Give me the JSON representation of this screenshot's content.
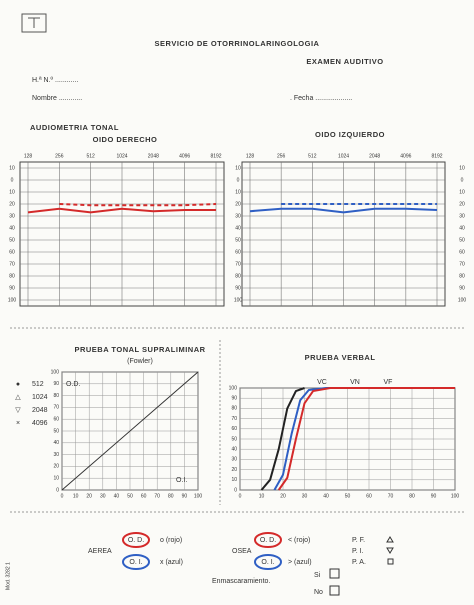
{
  "header": {
    "service": "SERVICIO DE OTORRINOLARINGOLOGIA",
    "exam": "EXAMEN AUDITIVO",
    "record": "H.ª N.º ............",
    "name": "Nombre ............",
    "date": ". Fecha ...................",
    "side_code": "Mod. 3282 1"
  },
  "audiometry": {
    "title": "AUDIOMETRIA TONAL",
    "frequencies": [
      128,
      256,
      512,
      1024,
      2048,
      4096,
      8192
    ],
    "ylim": [
      -10,
      100
    ],
    "yticks": [
      {
        "value": -10,
        "label": "10"
      },
      0,
      10,
      20,
      30,
      40,
      50,
      60,
      70,
      80,
      90,
      100
    ],
    "right": {
      "title": "OIDO DERECHO",
      "series": [
        {
          "color": "#d42a2a",
          "dashed": false,
          "values": [
            27,
            24,
            27,
            24,
            26,
            25,
            25
          ]
        },
        {
          "color": "#d42a2a",
          "dashed": true,
          "values": [
            null,
            20,
            21,
            21,
            21,
            21,
            20
          ]
        }
      ]
    },
    "left": {
      "title": "OIDO IZQUIERDO",
      "series": [
        {
          "color": "#2f5fc4",
          "dashed": false,
          "values": [
            26,
            24,
            24,
            27,
            24,
            24,
            25
          ]
        },
        {
          "color": "#2f5fc4",
          "dashed": true,
          "values": [
            null,
            20,
            20,
            20,
            20,
            20,
            20
          ]
        }
      ]
    }
  },
  "fowler": {
    "title": "PRUEBA TONAL SUPRALIMINAR",
    "subtitle": "(Fowler)",
    "legend": [
      {
        "symbol": "●",
        "label": "512"
      },
      {
        "symbol": "△",
        "label": "1024"
      },
      {
        "symbol": "▽",
        "label": "2048"
      },
      {
        "symbol": "×",
        "label": "4096"
      }
    ],
    "xlim": [
      0,
      100
    ],
    "ylim": [
      0,
      100
    ],
    "xticks": [
      0,
      10,
      20,
      30,
      40,
      50,
      60,
      70,
      80,
      90,
      100
    ],
    "yticks": [
      0,
      10,
      20,
      30,
      40,
      50,
      60,
      70,
      80,
      90,
      100
    ],
    "right_label": "O.D.",
    "left_label": "O.I."
  },
  "speech": {
    "title": "PRUEBA VERBAL",
    "markers": [
      "VC",
      "VN",
      "VF"
    ],
    "xlim": [
      0,
      100
    ],
    "ylim": [
      0,
      100
    ],
    "xticks": [
      0,
      10,
      20,
      30,
      40,
      50,
      60,
      70,
      80,
      90,
      100
    ],
    "yticks": [
      0,
      10,
      20,
      30,
      40,
      50,
      60,
      70,
      80,
      90,
      100
    ],
    "series": [
      {
        "color": "#222222",
        "x": [
          10,
          14,
          18,
          22,
          26,
          30
        ],
        "values": [
          0,
          10,
          40,
          80,
          97,
          100
        ]
      },
      {
        "color": "#2f5fc4",
        "x": [
          16,
          20,
          24,
          28,
          32,
          40,
          100
        ],
        "values": [
          0,
          15,
          55,
          88,
          98,
          100,
          100
        ]
      },
      {
        "color": "#d42a2a",
        "x": [
          18,
          22,
          26,
          30,
          34,
          42,
          100
        ],
        "values": [
          0,
          12,
          50,
          85,
          97,
          100,
          100
        ]
      }
    ]
  },
  "key": {
    "air": "AEREA",
    "air_od": "O. D.",
    "air_od_sym": "o (rojo)",
    "air_oi": "O. I.",
    "air_oi_sym": "x (azul)",
    "bone": "OSEA",
    "bone_od": "O. D.",
    "bone_od_sym": "< (rojo)",
    "bone_oi": "O. I.",
    "bone_oi_sym": "> (azul)",
    "pf": "P. F.",
    "pi": "P. I.",
    "pa": "P. A.",
    "masking": "Enmascaramiento.",
    "yes": "Si",
    "no": "No"
  }
}
